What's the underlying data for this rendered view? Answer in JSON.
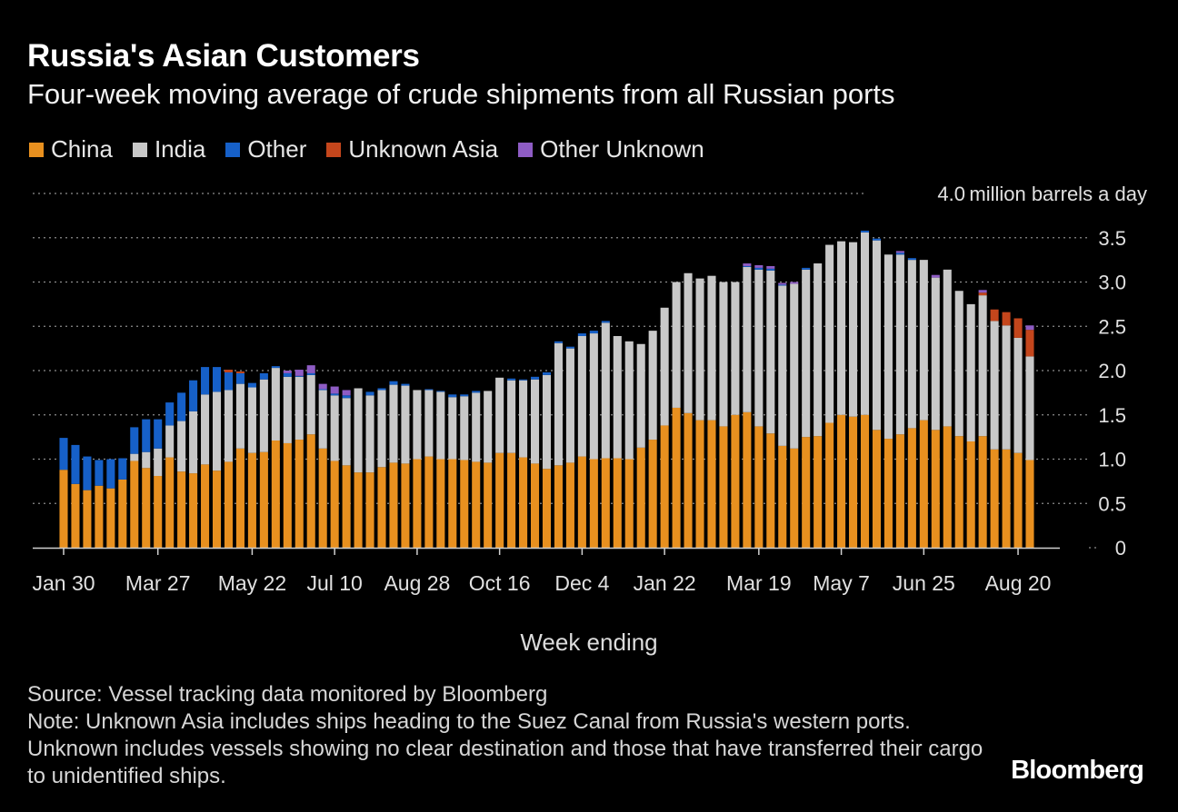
{
  "header": {
    "title": "Russia's Asian Customers",
    "subtitle": "Four-week moving average of crude shipments from all Russian ports"
  },
  "legend": [
    {
      "label": "China",
      "color": "#e8901f"
    },
    {
      "label": "India",
      "color": "#c8c8c8"
    },
    {
      "label": "Other",
      "color": "#1660c8"
    },
    {
      "label": "Unknown Asia",
      "color": "#c4461c"
    },
    {
      "label": "Other Unknown",
      "color": "#8e5cc4"
    }
  ],
  "footer": {
    "source": "Source: Vessel tracking data monitored by Bloomberg",
    "note": "Note: Unknown Asia includes ships heading to the Suez Canal from Russia's western ports. Unknown includes vessels showing no clear destination and those that have transferred their cargo to unidentified ships.",
    "brand": "Bloomberg"
  },
  "chart_data": {
    "type": "bar",
    "stacked": true,
    "title": "Russia's Asian Customers",
    "subtitle": "Four-week moving average of crude shipments from all Russian ports",
    "xlabel": "Week ending",
    "ylabel": "million barrels a day",
    "ylim": [
      0,
      4.0
    ],
    "yticks": [
      0,
      0.5,
      1.0,
      1.5,
      2.0,
      2.5,
      3.0,
      3.5,
      4.0
    ],
    "ytick_labels": [
      "0",
      "0.5",
      "1.0",
      "1.5",
      "2.0",
      "2.5",
      "3.0",
      "3.5",
      "4.0"
    ],
    "top_tick_unit": "million barrels a day",
    "xtick_labels": [
      {
        "index": 0,
        "label": "Jan 30"
      },
      {
        "index": 8,
        "label": "Mar 27"
      },
      {
        "index": 16,
        "label": "May 22"
      },
      {
        "index": 23,
        "label": "Jul 10"
      },
      {
        "index": 30,
        "label": "Aug 28"
      },
      {
        "index": 37,
        "label": "Oct 16"
      },
      {
        "index": 44,
        "label": "Dec 4"
      },
      {
        "index": 51,
        "label": "Jan 22"
      },
      {
        "index": 59,
        "label": "Mar 19"
      },
      {
        "index": 66,
        "label": "May 7"
      },
      {
        "index": 73,
        "label": "Jun 25"
      },
      {
        "index": 81,
        "label": "Aug 20"
      }
    ],
    "series": [
      {
        "name": "China",
        "color": "#e8901f",
        "values": [
          0.88,
          0.72,
          0.65,
          0.7,
          0.67,
          0.77,
          0.98,
          0.9,
          0.81,
          1.02,
          0.86,
          0.84,
          0.94,
          0.87,
          0.97,
          1.12,
          1.07,
          1.08,
          1.21,
          1.18,
          1.22,
          1.28,
          1.12,
          0.98,
          0.93,
          0.85,
          0.85,
          0.91,
          0.96,
          0.95,
          1.0,
          1.03,
          1.0,
          1.0,
          0.99,
          0.97,
          0.96,
          1.07,
          1.07,
          1.02,
          0.95,
          0.89,
          0.93,
          0.96,
          1.03,
          1.0,
          1.01,
          1.01,
          1.0,
          1.13,
          1.22,
          1.38,
          1.58,
          1.52,
          1.44,
          1.44,
          1.37,
          1.5,
          1.53,
          1.37,
          1.29,
          1.15,
          1.12,
          1.25,
          1.26,
          1.41,
          1.5,
          1.48,
          1.5,
          1.33,
          1.23,
          1.28,
          1.35,
          1.44,
          1.33,
          1.37,
          1.26,
          1.2,
          1.26,
          1.11,
          1.11,
          1.07,
          0.99
        ]
      },
      {
        "name": "India",
        "color": "#c8c8c8",
        "values": [
          0,
          0,
          0,
          0,
          0,
          0,
          0.08,
          0.18,
          0.31,
          0.36,
          0.57,
          0.7,
          0.79,
          0.89,
          0.81,
          0.73,
          0.74,
          0.82,
          0.82,
          0.75,
          0.71,
          0.67,
          0.66,
          0.74,
          0.76,
          0.95,
          0.87,
          0.87,
          0.88,
          0.88,
          0.78,
          0.75,
          0.76,
          0.7,
          0.72,
          0.78,
          0.81,
          0.85,
          0.82,
          0.87,
          0.95,
          1.06,
          1.38,
          1.29,
          1.36,
          1.42,
          1.53,
          1.38,
          1.33,
          1.17,
          1.23,
          1.33,
          1.42,
          1.58,
          1.6,
          1.63,
          1.63,
          1.5,
          1.64,
          1.77,
          1.84,
          1.81,
          1.86,
          1.89,
          1.95,
          2.01,
          1.96,
          1.97,
          2.06,
          2.14,
          2.08,
          2.03,
          1.9,
          1.81,
          1.72,
          1.77,
          1.64,
          1.55,
          1.59,
          1.45,
          1.4,
          1.3,
          1.17
        ]
      },
      {
        "name": "Other",
        "color": "#1660c8",
        "values": [
          0.36,
          0.44,
          0.38,
          0.29,
          0.33,
          0.24,
          0.3,
          0.37,
          0.33,
          0.26,
          0.32,
          0.35,
          0.31,
          0.28,
          0.2,
          0.12,
          0.05,
          0.07,
          0.02,
          0.04,
          0.01,
          0.02,
          0.01,
          0.02,
          0.03,
          0.0,
          0.04,
          0.02,
          0.04,
          0.02,
          0.0,
          0.01,
          0.01,
          0.03,
          0.02,
          0.02,
          0.0,
          0.0,
          0.02,
          0.01,
          0.03,
          0.03,
          0.02,
          0.02,
          0.03,
          0.03,
          0.02,
          0.0,
          0.0,
          0.0,
          0.0,
          0.0,
          0.0,
          0.0,
          0.0,
          0.0,
          0.0,
          0.0,
          0.01,
          0.02,
          0.02,
          0.01,
          0.0,
          0.02,
          0.0,
          0.0,
          0.0,
          0.0,
          0.02,
          0.02,
          0.0,
          0.02,
          0.02,
          0.0,
          0.0,
          0.0,
          0.0,
          0.0,
          0.0,
          0.0,
          0.0,
          0.0,
          0.0
        ]
      },
      {
        "name": "Unknown Asia",
        "color": "#c4461c",
        "values": [
          0,
          0,
          0,
          0,
          0,
          0,
          0,
          0,
          0,
          0,
          0,
          0,
          0,
          0,
          0.03,
          0.02,
          0,
          0,
          0,
          0,
          0,
          0,
          0,
          0,
          0,
          0,
          0,
          0,
          0,
          0,
          0,
          0,
          0,
          0,
          0,
          0,
          0,
          0,
          0,
          0,
          0,
          0,
          0,
          0,
          0,
          0,
          0,
          0,
          0,
          0,
          0,
          0,
          0,
          0,
          0,
          0,
          0,
          0,
          0,
          0,
          0,
          0,
          0,
          0,
          0,
          0,
          0,
          0,
          0,
          0,
          0,
          0,
          0,
          0,
          0,
          0,
          0,
          0,
          0.03,
          0.13,
          0.15,
          0.22,
          0.3
        ]
      },
      {
        "name": "Other Unknown",
        "color": "#8e5cc4",
        "values": [
          0,
          0,
          0,
          0,
          0,
          0,
          0,
          0,
          0,
          0,
          0,
          0,
          0,
          0,
          0,
          0,
          0,
          0,
          0,
          0.03,
          0.07,
          0.09,
          0.06,
          0.08,
          0.06,
          0,
          0,
          0,
          0,
          0,
          0,
          0,
          0,
          0,
          0,
          0,
          0,
          0,
          0,
          0,
          0,
          0,
          0,
          0,
          0,
          0,
          0,
          0,
          0,
          0,
          0,
          0,
          0,
          0,
          0,
          0,
          0,
          0,
          0.03,
          0.03,
          0.03,
          0.02,
          0.02,
          0,
          0,
          0,
          0,
          0,
          0,
          0,
          0,
          0.02,
          0,
          0,
          0.03,
          0,
          0,
          0,
          0.03,
          0,
          0,
          0,
          0.05
        ]
      }
    ]
  }
}
